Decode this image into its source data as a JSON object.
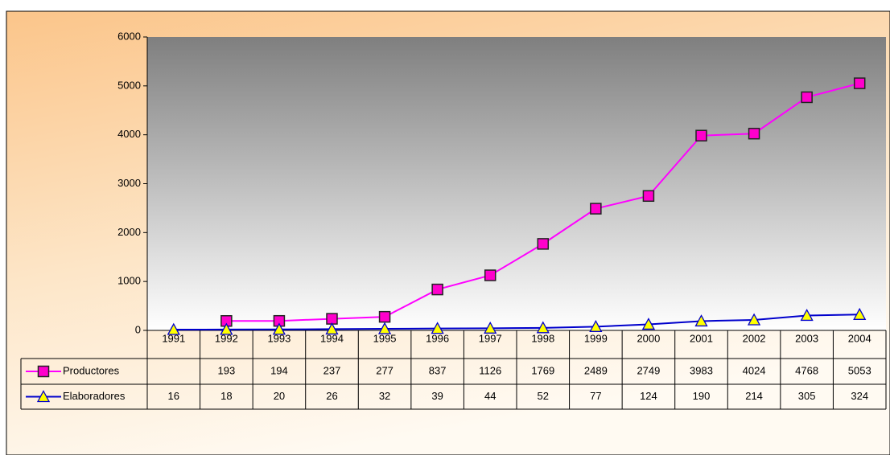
{
  "chart_data": {
    "type": "line",
    "categories": [
      "1991",
      "1992",
      "1993",
      "1994",
      "1995",
      "1996",
      "1997",
      "1998",
      "1999",
      "2000",
      "2001",
      "2002",
      "2003",
      "2004"
    ],
    "series": [
      {
        "name": "Productores",
        "color": "#ff00ff",
        "marker": "square",
        "marker_fill": "#ff00cc",
        "values": [
          null,
          193,
          194,
          237,
          277,
          837,
          1126,
          1769,
          2489,
          2749,
          3983,
          4024,
          4768,
          5053
        ]
      },
      {
        "name": "Elaboradores",
        "color": "#0000cc",
        "marker": "triangle",
        "marker_fill": "#ffff00",
        "values": [
          16,
          18,
          20,
          26,
          32,
          39,
          44,
          52,
          77,
          124,
          190,
          214,
          305,
          324
        ]
      }
    ],
    "ylim": [
      0,
      6000
    ],
    "yticks": [
      0,
      1000,
      2000,
      3000,
      4000,
      5000,
      6000
    ],
    "data_table": true
  }
}
